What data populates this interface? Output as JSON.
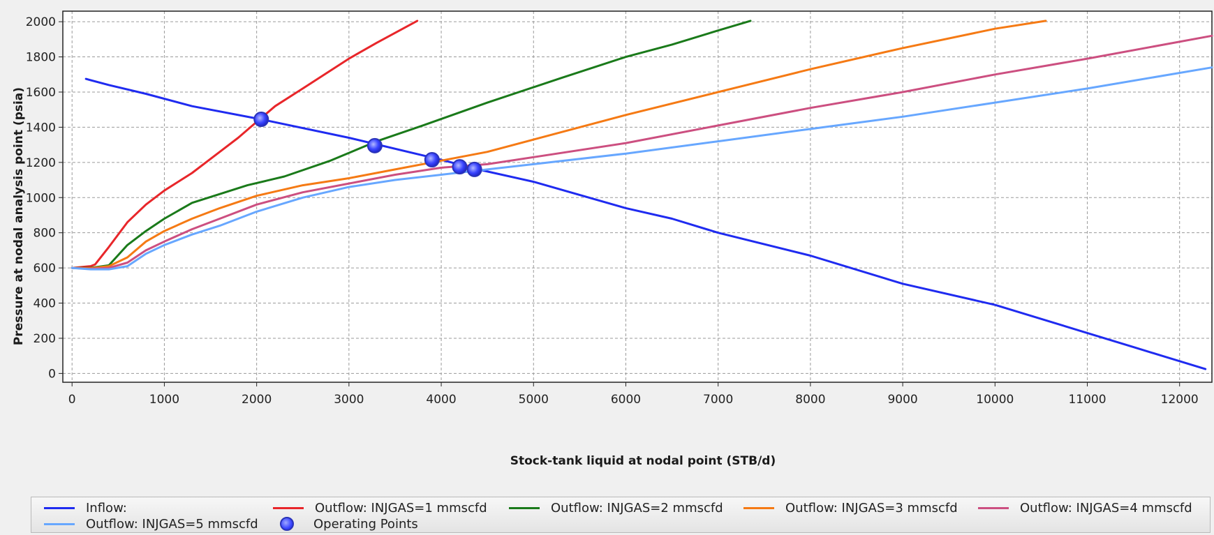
{
  "chart_data": {
    "type": "line",
    "xlabel": "Stock-tank liquid at nodal point (STB/d)",
    "ylabel": "Pressure at nodal analysis point (psia)",
    "xlim": [
      -100,
      12350
    ],
    "ylim": [
      -50,
      2060
    ],
    "xticks": [
      0,
      1000,
      2000,
      3000,
      4000,
      5000,
      6000,
      7000,
      8000,
      9000,
      10000,
      11000,
      12000
    ],
    "yticks": [
      0,
      200,
      400,
      600,
      800,
      1000,
      1200,
      1400,
      1600,
      1800,
      2000
    ],
    "grid": true,
    "legend_position": "bottom",
    "series": [
      {
        "name": "Inflow:",
        "color": "#1f2bf0",
        "x": [
          150,
          400,
          800,
          1300,
          2050,
          3000,
          4000,
          4400,
          5000,
          6000,
          6500,
          7000,
          8000,
          9000,
          10000,
          11000,
          11500,
          12280
        ],
        "y": [
          1675,
          1640,
          1590,
          1520,
          1445,
          1340,
          1215,
          1160,
          1090,
          940,
          880,
          800,
          670,
          510,
          390,
          230,
          150,
          25
        ]
      },
      {
        "name": "Outflow: INJGAS=1 mmscfd",
        "color": "#e8262a",
        "x": [
          0,
          100,
          200,
          250,
          400,
          600,
          800,
          1000,
          1300,
          1600,
          1800,
          2000,
          2200,
          2500,
          3000,
          3300,
          3740
        ],
        "y": [
          600,
          605,
          610,
          620,
          720,
          860,
          960,
          1040,
          1140,
          1260,
          1340,
          1430,
          1520,
          1620,
          1790,
          1880,
          2005
        ]
      },
      {
        "name": "Outflow: INJGAS=2 mmscfd",
        "color": "#1a7a1a",
        "x": [
          0,
          200,
          400,
          600,
          800,
          1000,
          1300,
          1600,
          1900,
          2300,
          2800,
          3300,
          3800,
          4500,
          5300,
          6000,
          6500,
          7000,
          7350
        ],
        "y": [
          600,
          600,
          615,
          730,
          810,
          880,
          970,
          1020,
          1070,
          1120,
          1210,
          1320,
          1410,
          1540,
          1680,
          1800,
          1870,
          1950,
          2005
        ]
      },
      {
        "name": "Outflow: INJGAS=3 mmscfd",
        "color": "#f57a14",
        "x": [
          0,
          200,
          400,
          600,
          800,
          1000,
          1300,
          1600,
          2000,
          2500,
          3000,
          3500,
          4000,
          4500,
          5000,
          5500,
          6000,
          7000,
          8000,
          9000,
          10000,
          10550
        ],
        "y": [
          600,
          598,
          610,
          660,
          750,
          810,
          880,
          940,
          1010,
          1070,
          1110,
          1160,
          1210,
          1260,
          1330,
          1400,
          1470,
          1600,
          1730,
          1850,
          1960,
          2005
        ]
      },
      {
        "name": "Outflow: INJGAS=4 mmscfd",
        "color": "#cc4f80",
        "x": [
          0,
          200,
          400,
          600,
          800,
          1000,
          1300,
          1600,
          2000,
          2500,
          3000,
          3500,
          4000,
          4500,
          5000,
          6000,
          7000,
          8000,
          9000,
          10000,
          11000,
          12350
        ],
        "y": [
          600,
          595,
          600,
          630,
          700,
          750,
          820,
          880,
          960,
          1030,
          1080,
          1130,
          1170,
          1190,
          1230,
          1310,
          1410,
          1510,
          1600,
          1700,
          1790,
          1920
        ]
      },
      {
        "name": "Outflow: INJGAS=5 mmscfd",
        "color": "#67a7ff",
        "x": [
          0,
          200,
          400,
          600,
          800,
          1000,
          1300,
          1600,
          2000,
          2500,
          3000,
          3500,
          4000,
          4500,
          5000,
          6000,
          7000,
          8000,
          9000,
          10000,
          11000,
          12350
        ],
        "y": [
          600,
          592,
          592,
          610,
          680,
          730,
          790,
          840,
          920,
          1000,
          1060,
          1100,
          1130,
          1160,
          1190,
          1250,
          1320,
          1390,
          1460,
          1540,
          1620,
          1740
        ]
      }
    ],
    "operating_points": {
      "name": "Operating Points",
      "x": [
        2050,
        3280,
        3900,
        4200,
        4360
      ],
      "y": [
        1445,
        1295,
        1215,
        1175,
        1160
      ]
    }
  }
}
